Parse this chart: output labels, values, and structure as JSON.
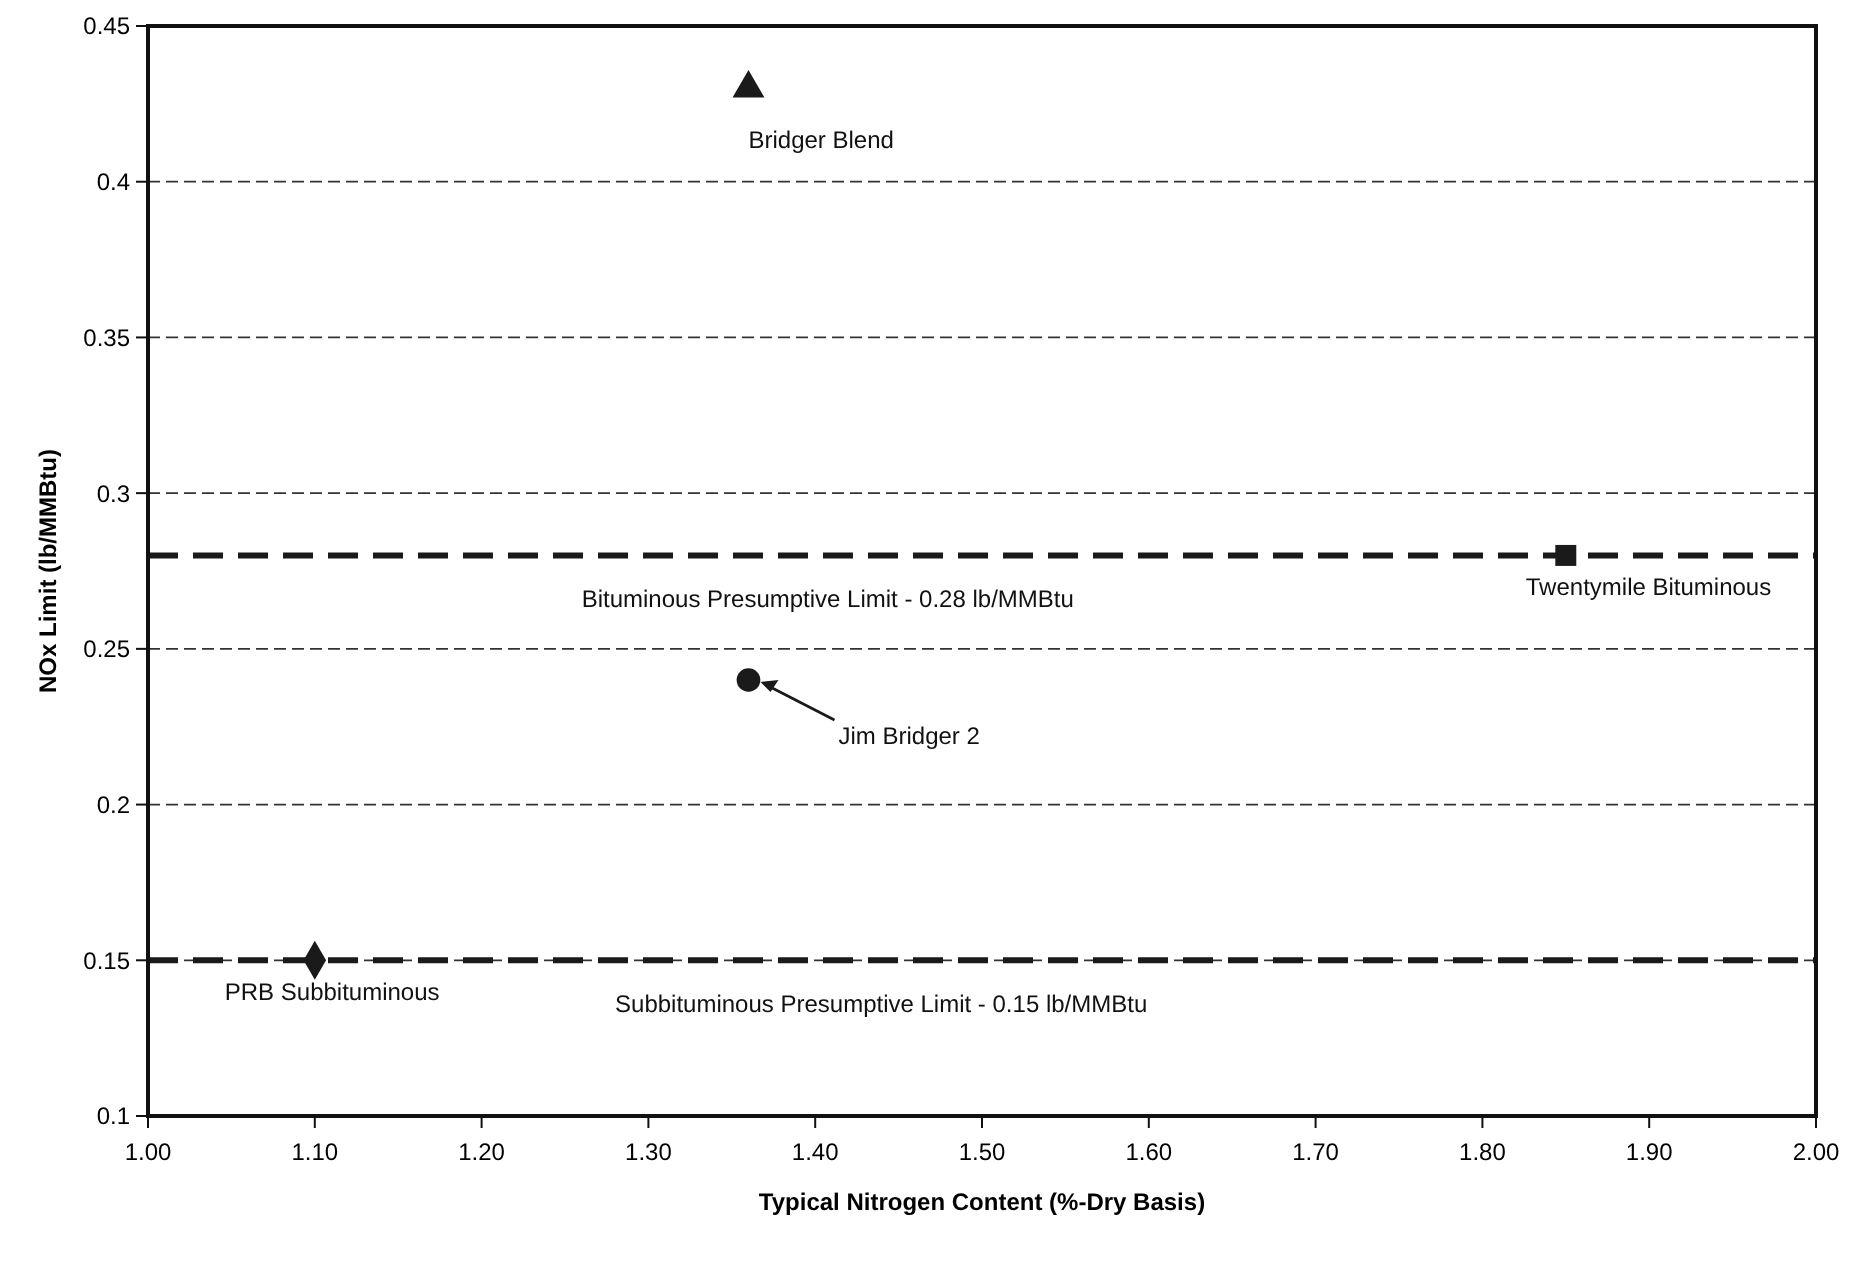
{
  "chart_data": {
    "type": "scatter",
    "xlabel": "Typical Nitrogen Content (%-Dry Basis)",
    "ylabel": "NOx Limit (lb/MMBtu)",
    "xlim": [
      1.0,
      2.0
    ],
    "xticks": [
      {
        "value": 1.0,
        "label": "1.00"
      },
      {
        "value": 1.1,
        "label": "1.10"
      },
      {
        "value": 1.2,
        "label": "1.20"
      },
      {
        "value": 1.3,
        "label": "1.30"
      },
      {
        "value": 1.4,
        "label": "1.40"
      },
      {
        "value": 1.5,
        "label": "1.50"
      },
      {
        "value": 1.6,
        "label": "1.60"
      },
      {
        "value": 1.7,
        "label": "1.70"
      },
      {
        "value": 1.8,
        "label": "1.80"
      },
      {
        "value": 1.9,
        "label": "1.90"
      },
      {
        "value": 2.0,
        "label": "2.00"
      }
    ],
    "ylim": [
      0.1,
      0.45
    ],
    "yticks": [
      0.1,
      0.15,
      0.2,
      0.25,
      0.3,
      0.35,
      0.4,
      0.45
    ],
    "grid": "y",
    "series": [
      {
        "name": "Bridger Blend",
        "color": "#1a1a1a",
        "marker": "triangle",
        "x": [
          1.36
        ],
        "values": [
          0.43
        ]
      },
      {
        "name": "Twentymile Bituminous",
        "color": "#1a1a1a",
        "marker": "square",
        "x": [
          1.85
        ],
        "values": [
          0.28
        ]
      },
      {
        "name": "Jim Bridger 2",
        "color": "#1a1a1a",
        "marker": "circle",
        "x": [
          1.36
        ],
        "values": [
          0.24
        ]
      },
      {
        "name": "PRB Subbituminous",
        "color": "#1a1a1a",
        "marker": "diamond",
        "x": [
          1.1
        ],
        "values": [
          0.15
        ]
      }
    ],
    "ref_lines": [
      {
        "axis": "y",
        "value": 0.28,
        "label": "Bituminous Presumptive Limit - 0.28 lb/MMBtu",
        "color": "#1a1a1a",
        "line_style": "dashed"
      },
      {
        "axis": "y",
        "value": 0.15,
        "label": "Subbituminous Presumptive Limit - 0.15 lb/MMBtu",
        "color": "#1a1a1a",
        "line_style": "dashed"
      }
    ]
  }
}
